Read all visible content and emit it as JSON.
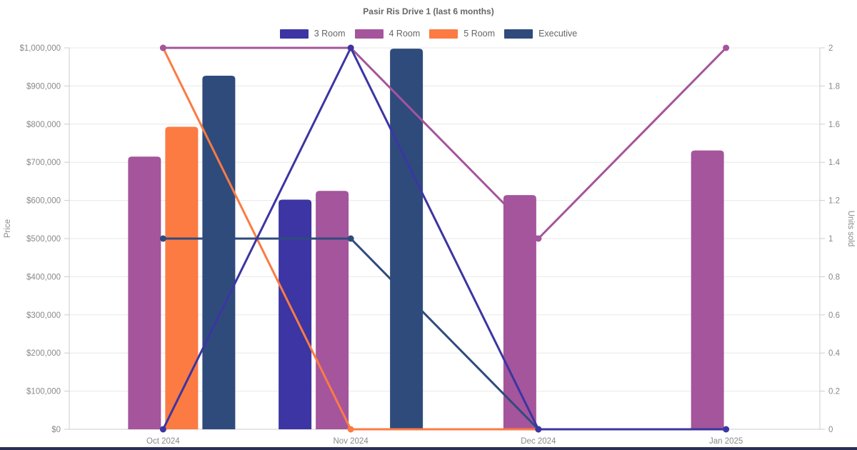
{
  "title": "Pasir Ris Drive 1 (last 6 months)",
  "chart_data": {
    "type": "bar+line combo",
    "title": "Pasir Ris Drive 1 (last 6 months)",
    "categories": [
      "Oct 2024",
      "Nov 2024",
      "Dec 2024",
      "Jan 2025"
    ],
    "left_axis": {
      "label": "Price",
      "min": 0,
      "max": 1000000,
      "step": 100000,
      "tick_labels": [
        "$0",
        "$100,000",
        "$200,000",
        "$300,000",
        "$400,000",
        "$500,000",
        "$600,000",
        "$700,000",
        "$800,000",
        "$900,000",
        "$1,000,000"
      ]
    },
    "right_axis": {
      "label": "Units sold",
      "min": 0,
      "max": 2,
      "step": 0.2,
      "tick_labels": [
        "0",
        "0.2",
        "0.4",
        "0.6",
        "0.8",
        "1",
        "1.2",
        "1.4",
        "1.6",
        "1.8",
        "2"
      ]
    },
    "grid": true,
    "legend_position": "top",
    "series": [
      {
        "name": "3 Room",
        "color": "#3c35a3",
        "bars": [
          null,
          602000,
          null,
          null
        ],
        "line": [
          0,
          2,
          0,
          0
        ]
      },
      {
        "name": "4 Room",
        "color": "#a4559c",
        "bars": [
          715000,
          625000,
          614000,
          731000
        ],
        "line": [
          2,
          2,
          1,
          2
        ]
      },
      {
        "name": "5 Room",
        "color": "#fb7b43",
        "bars": [
          793000,
          null,
          null,
          null
        ],
        "line": [
          2,
          0,
          0,
          null
        ]
      },
      {
        "name": "Executive",
        "color": "#2f4b7c",
        "bars": [
          927000,
          998000,
          null,
          null
        ],
        "line": [
          1,
          1,
          0,
          null
        ]
      }
    ],
    "colors": {
      "grid_line": "#e8e8e8",
      "axis_line": "#cccccc",
      "tick_text": "#898989",
      "axis_title_text": "#8a8a8a",
      "title_text": "#666666",
      "bottom_strip": "#2a2e54"
    }
  }
}
